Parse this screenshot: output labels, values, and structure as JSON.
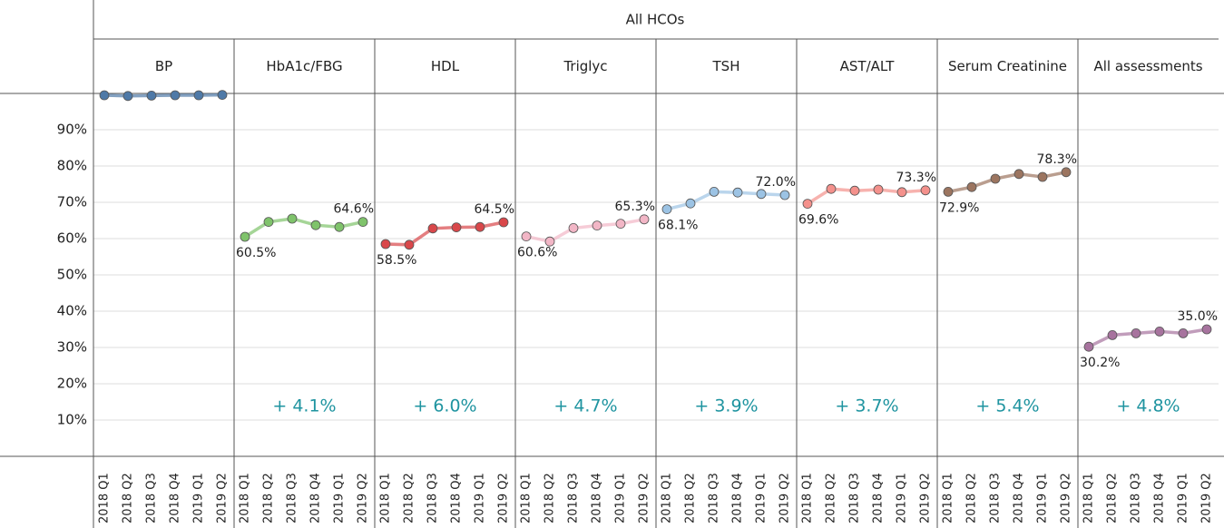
{
  "chart_data": {
    "type": "line",
    "title": "All HCOs",
    "categories": [
      "2018 Q1",
      "2018 Q2",
      "2018 Q3",
      "2018 Q4",
      "2019 Q1",
      "2019 Q2"
    ],
    "ylim": [
      0,
      100
    ],
    "yticks": [
      {
        "value": 10,
        "label": "10%"
      },
      {
        "value": 20,
        "label": "20%"
      },
      {
        "value": 30,
        "label": "30%"
      },
      {
        "value": 40,
        "label": "40%"
      },
      {
        "value": 50,
        "label": "50%"
      },
      {
        "value": 60,
        "label": "60%"
      },
      {
        "value": 70,
        "label": "70%"
      },
      {
        "value": 80,
        "label": "80%"
      },
      {
        "value": 90,
        "label": "90%"
      }
    ],
    "grid": true,
    "series": [
      {
        "name": "BP",
        "color": "#4e79a7",
        "values": [
          99.5,
          99.3,
          99.4,
          99.5,
          99.5,
          99.6
        ]
      },
      {
        "name": "HbA1c/FBG",
        "color": "#7fc36b",
        "values": [
          60.5,
          64.6,
          65.5,
          63.7,
          63.2,
          64.6
        ],
        "value_labels": [
          "60.5%",
          null,
          null,
          null,
          null,
          "64.6%"
        ],
        "annotation": "+ 4.1%"
      },
      {
        "name": "HDL",
        "color": "#d9474a",
        "values": [
          58.5,
          58.3,
          62.8,
          63.1,
          63.2,
          64.5
        ],
        "value_labels": [
          "58.5%",
          null,
          null,
          null,
          null,
          "64.5%"
        ],
        "annotation": "+ 6.0%"
      },
      {
        "name": "Triglyc",
        "color": "#f2b6c6",
        "values": [
          60.6,
          59.2,
          62.9,
          63.6,
          64.1,
          65.3
        ],
        "value_labels": [
          "60.6%",
          null,
          null,
          null,
          null,
          "65.3%"
        ],
        "annotation": "+ 4.7%"
      },
      {
        "name": "TSH",
        "color": "#9cc3e4",
        "values": [
          68.1,
          69.7,
          72.9,
          72.7,
          72.3,
          72.0
        ],
        "value_labels": [
          "68.1%",
          null,
          null,
          null,
          null,
          "72.0%"
        ],
        "annotation": "+ 3.9%"
      },
      {
        "name": "AST/ALT",
        "color": "#f4918c",
        "values": [
          69.6,
          73.7,
          73.2,
          73.5,
          72.8,
          73.3
        ],
        "value_labels": [
          "69.6%",
          null,
          null,
          null,
          null,
          "73.3%"
        ],
        "annotation": "+ 3.7%"
      },
      {
        "name": "Serum Creatinine",
        "color": "#9c7560",
        "values": [
          72.9,
          74.2,
          76.5,
          77.8,
          77.0,
          78.3
        ],
        "value_labels": [
          "72.9%",
          null,
          null,
          null,
          null,
          "78.3%"
        ],
        "annotation": "+ 5.4%"
      },
      {
        "name": "All assessments",
        "color": "#a7739e",
        "values": [
          30.2,
          33.4,
          33.9,
          34.4,
          33.9,
          35.0
        ],
        "value_labels": [
          "30.2%",
          null,
          null,
          null,
          null,
          "35.0%"
        ],
        "annotation": "+ 4.8%"
      }
    ]
  }
}
